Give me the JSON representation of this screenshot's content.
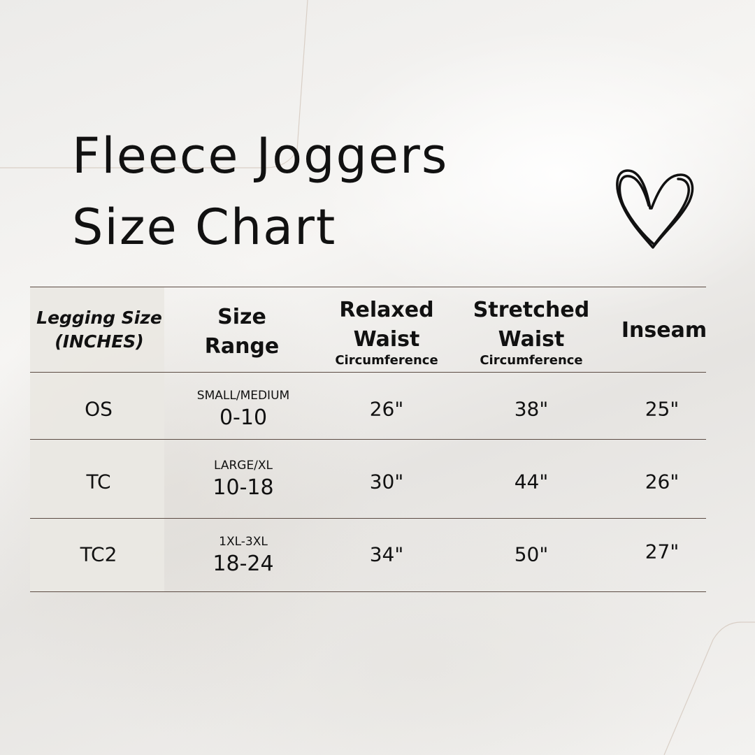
{
  "title": {
    "line1": "Fleece Joggers",
    "line2": "Size Chart"
  },
  "decoration": {
    "icon": "heart-icon"
  },
  "table": {
    "headers": {
      "size": {
        "line1": "Legging Size",
        "line2": "(INCHES)"
      },
      "range": {
        "line1": "Size",
        "line2": "Range"
      },
      "relaxed": {
        "line1": "Relaxed",
        "line2": "Waist",
        "sub": "Circumference"
      },
      "stretched": {
        "line1": "Stretched",
        "line2": "Waist",
        "sub": "Circumference"
      },
      "inseam": {
        "line1": "Inseam"
      }
    },
    "rows": [
      {
        "size": "OS",
        "range_label": "SMALL/MEDIUM",
        "range": "0-10",
        "relaxed": "26\"",
        "stretched": "38\"",
        "inseam": "25\""
      },
      {
        "size": "TC",
        "range_label": "LARGE/XL",
        "range": "10-18",
        "relaxed": "30\"",
        "stretched": "44\"",
        "inseam": "26\""
      },
      {
        "size": "TC2",
        "range_label": "1XL-3XL",
        "range": "18-24",
        "relaxed": "34\"",
        "stretched": "50\"",
        "inseam": "27\""
      }
    ]
  }
}
